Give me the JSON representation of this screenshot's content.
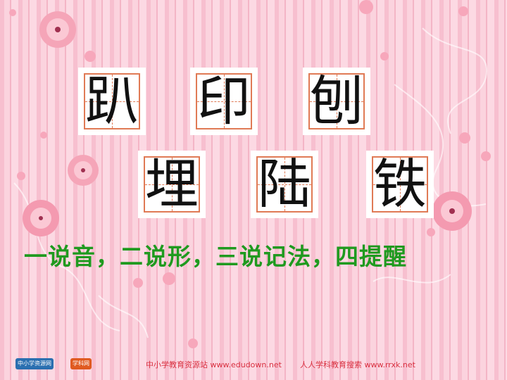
{
  "characters": {
    "row1": [
      "趴",
      "印",
      "刨"
    ],
    "row2": [
      "埋",
      "陆",
      "铁"
    ]
  },
  "subtitle": "一说音，二说形，三说记法，四提醒",
  "footer": {
    "left": "中小学教育资源站 www.edudown.net",
    "right": "人人学科教育搜索 www.rrxk.net"
  },
  "logos": {
    "logo1": "中小学资源网",
    "logo2": "学科网"
  },
  "colors": {
    "background": "#f9c9d6",
    "card_border": "#e07a55",
    "subtitle": "#1f9a1f",
    "footer": "#d93040"
  }
}
